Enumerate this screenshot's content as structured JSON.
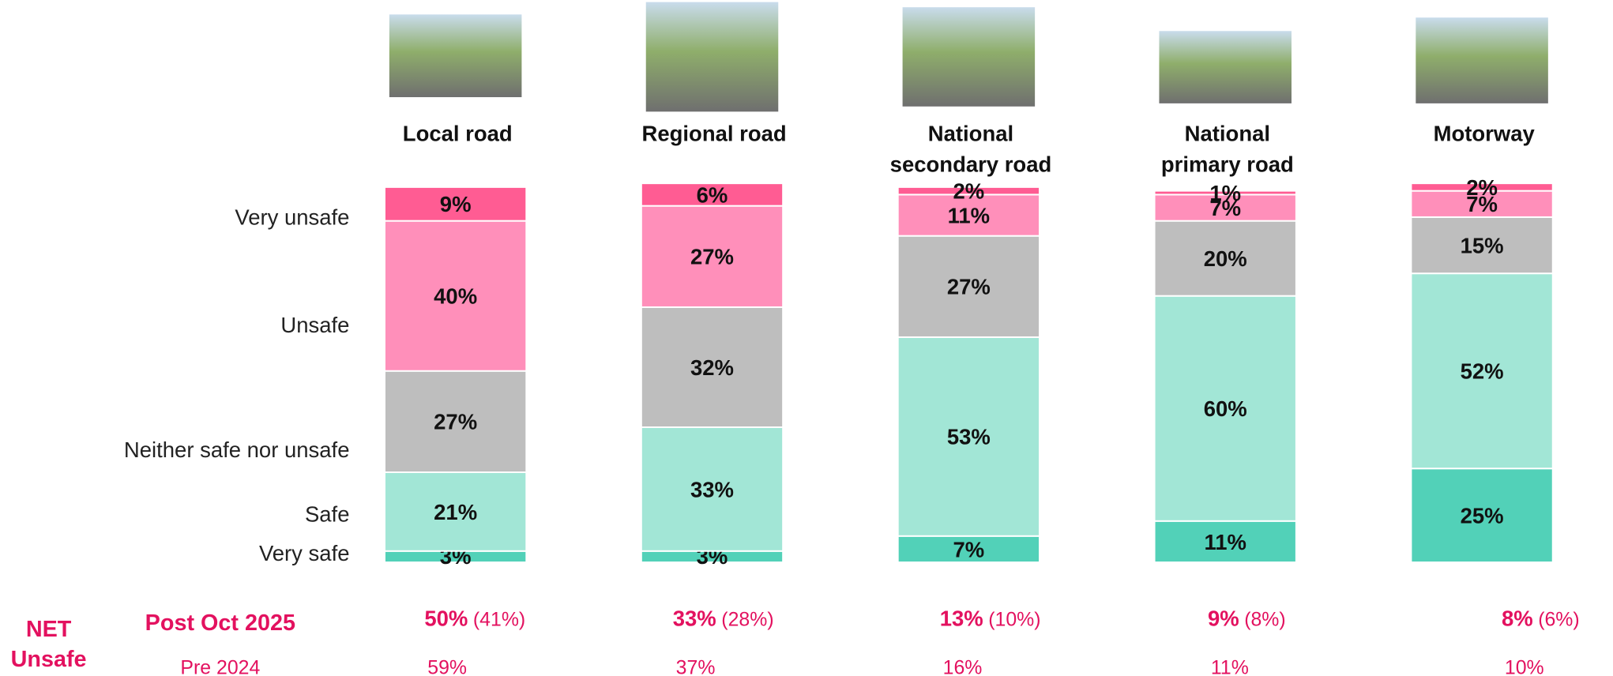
{
  "chart_data": {
    "type": "stacked_bar",
    "categories": [
      "Local road",
      "Regional road",
      "National secondary road",
      "National primary road",
      "Motorway"
    ],
    "ylim": [
      0,
      100
    ],
    "series": [
      {
        "name": "Very safe",
        "color": "#52d1b8",
        "values": [
          3,
          3,
          7,
          11,
          25
        ],
        "value_labels": [
          "3%",
          "3%",
          "7%",
          "11%",
          "25%"
        ]
      },
      {
        "name": "Safe",
        "color": "#a2e6d6",
        "values": [
          21,
          33,
          53,
          60,
          52
        ],
        "value_labels": [
          "21%",
          "33%",
          "53%",
          "60%",
          "52%"
        ]
      },
      {
        "name": "Neither safe nor unsafe",
        "color": "#bebebe",
        "values": [
          27,
          32,
          27,
          20,
          15
        ],
        "value_labels": [
          "27%",
          "32%",
          "27%",
          "20%",
          "15%"
        ]
      },
      {
        "name": "Unsafe",
        "color": "#ff8fba",
        "values": [
          40,
          27,
          11,
          7,
          7
        ],
        "value_labels": [
          "40%",
          "27%",
          "11%",
          "7%",
          "7%"
        ]
      },
      {
        "name": "Very unsafe",
        "color": "#ff5c93",
        "values": [
          9,
          6,
          2,
          1,
          2
        ],
        "value_labels": [
          "9%",
          "6%",
          "2%",
          "1%",
          "2%"
        ]
      }
    ]
  },
  "net_unsafe": {
    "title_line1": "NET",
    "title_line2": "Unsafe",
    "post": {
      "label": "Post Oct 2025",
      "values": [
        50,
        33,
        13,
        9,
        8
      ],
      "value_labels": [
        "50%",
        "33%",
        "13%",
        "9%",
        "8%"
      ],
      "bracket_values": [
        41,
        28,
        10,
        8,
        6
      ],
      "bracket_labels": [
        "(41%)",
        "(28%)",
        "(10%)",
        "(8%)",
        "(6%)"
      ]
    },
    "pre": {
      "label": "Pre 2024",
      "values": [
        59,
        37,
        16,
        11,
        10
      ],
      "value_labels": [
        "59%",
        "37%",
        "16%",
        "11%",
        "10%"
      ]
    }
  }
}
